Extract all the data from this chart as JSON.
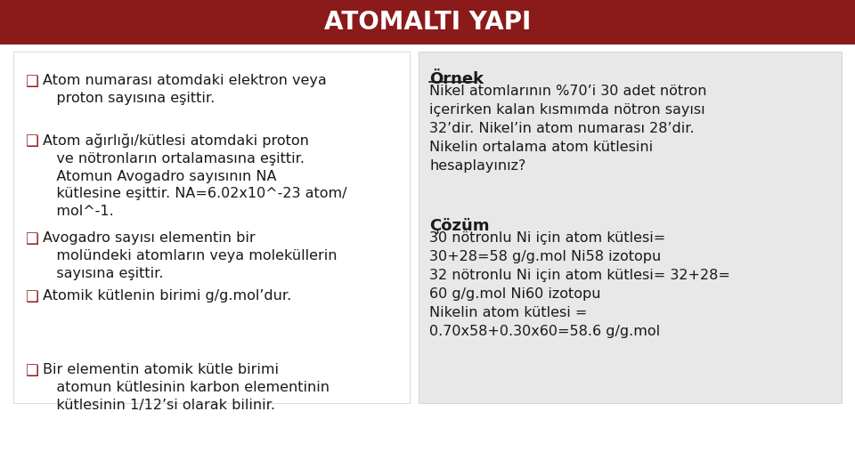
{
  "title": "ATOMALTI YAPI",
  "title_bg_color": "#8B1A1A",
  "title_text_color": "#FFFFFF",
  "main_bg_color": "#FFFFFF",
  "left_panel_bg": "#FFFFFF",
  "right_panel_bg": "#E8E8E8",
  "bullet_color": "#8B1A1A",
  "left_bullets": [
    "Atom numarası atomdaki elektron veya\n   proton sayısına eşittir.",
    "Atom ağırlığı/kütlesi atomdaki proton\n   ve nötronların ortalamasına eşittir.\n   Atomun Avogadro sayısının NA\n   kütlesine eşittir. NA=6.02x10^-23 atom/\n   mol^-1.",
    "Avogadro sayısı elementin bir\n   molündeki atomların veya moleküllerin\n   sayısına eşittir.",
    "Atomik kütlenin birimi g/g.mol’dur.",
    "Bir elementin atomik kütle birimi\n   atomun kütlesinin karbon elementinin\n   kütlesinin 1/12’si olarak bilinir."
  ],
  "example_title": "Örnek",
  "example_text": "Nikel atomlarının %70’i 30 adet nötron\niçerirken kalan kısmımda nötron sayısı\n32’dir. Nikel’in atom numarası 28’dir.\nNikelin ortalama atom kütlesini\nhesaplayınız?",
  "solution_title": "Çözüm",
  "solution_text": "30 nötronlu Ni için atom kütlesi=\n30+28=58 g/g.mol Ni58 izotopu\n32 nötronlu Ni için atom kütlesi= 32+28=\n60 g/g.mol Ni60 izotopu\nNikelin atom kütlesi =\n0.70x58+0.30x60=58.6 g/g.mol",
  "text_color": "#1A1A1A",
  "wave_color": "#C0C0C0"
}
